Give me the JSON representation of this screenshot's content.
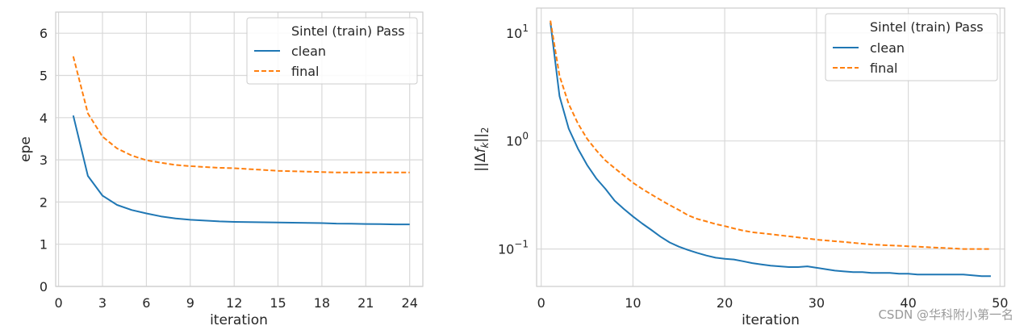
{
  "colors": {
    "clean": "#1f77b4",
    "final": "#ff7f0e",
    "grid": "#d9d9d9",
    "frame": "#cccccc",
    "text": "#262626"
  },
  "watermark": "CSDN @华科附小第一名",
  "chart_data": [
    {
      "type": "line",
      "xlabel": "iteration",
      "ylabel": "epe",
      "xlim": [
        -0.2,
        24.9
      ],
      "ylim": [
        0,
        6.5
      ],
      "xticks": [
        0,
        3,
        6,
        9,
        12,
        15,
        18,
        21,
        24
      ],
      "xtick_labels": [
        "0",
        "3",
        "6",
        "9",
        "12",
        "15",
        "18",
        "21",
        "24"
      ],
      "yticks": [
        0,
        1,
        2,
        3,
        4,
        5,
        6
      ],
      "ytick_labels": [
        "0",
        "1",
        "2",
        "3",
        "4",
        "5",
        "6"
      ],
      "grid": true,
      "legend": {
        "title": "Sintel (train) Pass",
        "placement": "top-right"
      },
      "series": [
        {
          "name": "clean",
          "style": "solid",
          "x": [
            1,
            2,
            3,
            4,
            5,
            6,
            7,
            8,
            9,
            10,
            11,
            12,
            13,
            14,
            15,
            16,
            17,
            18,
            19,
            20,
            21,
            22,
            23,
            24
          ],
          "y": [
            4.05,
            2.62,
            2.15,
            1.93,
            1.81,
            1.73,
            1.66,
            1.61,
            1.58,
            1.56,
            1.54,
            1.53,
            1.525,
            1.52,
            1.515,
            1.51,
            1.505,
            1.5,
            1.49,
            1.485,
            1.48,
            1.475,
            1.47,
            1.47
          ]
        },
        {
          "name": "final",
          "style": "dashed",
          "x": [
            1,
            2,
            3,
            4,
            5,
            6,
            7,
            8,
            9,
            10,
            11,
            12,
            13,
            14,
            15,
            16,
            17,
            18,
            19,
            20,
            21,
            22,
            23,
            24
          ],
          "y": [
            5.45,
            4.1,
            3.55,
            3.27,
            3.1,
            2.99,
            2.93,
            2.88,
            2.85,
            2.83,
            2.81,
            2.8,
            2.78,
            2.76,
            2.74,
            2.73,
            2.72,
            2.71,
            2.7,
            2.7,
            2.7,
            2.7,
            2.7,
            2.7
          ]
        }
      ]
    },
    {
      "type": "line",
      "xlabel": "iteration",
      "ylabel": "||Δf_k||_2",
      "yscale": "log",
      "xlim": [
        -0.5,
        50.5
      ],
      "ylim": [
        0.045,
        17
      ],
      "xticks": [
        0,
        10,
        20,
        30,
        40,
        50
      ],
      "xtick_labels": [
        "0",
        "10",
        "20",
        "30",
        "40",
        "50"
      ],
      "yticks": [
        0.1,
        1,
        10
      ],
      "ytick_labels": [
        "10^-1",
        "10^0",
        "10^1"
      ],
      "grid": true,
      "legend": {
        "title": "Sintel (train) Pass",
        "placement": "top-right"
      },
      "series": [
        {
          "name": "clean",
          "style": "solid",
          "x": [
            1,
            2,
            3,
            4,
            5,
            6,
            7,
            8,
            9,
            10,
            11,
            12,
            13,
            14,
            15,
            16,
            17,
            18,
            19,
            20,
            21,
            22,
            23,
            24,
            25,
            26,
            27,
            28,
            29,
            30,
            31,
            32,
            33,
            34,
            35,
            36,
            37,
            38,
            39,
            40,
            41,
            42,
            43,
            44,
            45,
            46,
            47,
            48,
            49
          ],
          "y": [
            12.5,
            2.6,
            1.3,
            0.85,
            0.6,
            0.45,
            0.36,
            0.28,
            0.235,
            0.2,
            0.172,
            0.15,
            0.13,
            0.115,
            0.105,
            0.098,
            0.092,
            0.087,
            0.083,
            0.081,
            0.08,
            0.077,
            0.074,
            0.072,
            0.07,
            0.069,
            0.068,
            0.068,
            0.069,
            0.067,
            0.065,
            0.063,
            0.062,
            0.061,
            0.061,
            0.06,
            0.06,
            0.06,
            0.059,
            0.059,
            0.058,
            0.058,
            0.058,
            0.058,
            0.058,
            0.058,
            0.057,
            0.056,
            0.056
          ]
        },
        {
          "name": "final",
          "style": "dashed",
          "x": [
            1,
            2,
            3,
            4,
            5,
            6,
            7,
            8,
            9,
            10,
            11,
            12,
            13,
            14,
            15,
            16,
            17,
            18,
            19,
            20,
            21,
            22,
            23,
            24,
            25,
            26,
            27,
            28,
            29,
            30,
            31,
            32,
            33,
            34,
            35,
            36,
            37,
            38,
            39,
            40,
            41,
            42,
            43,
            44,
            45,
            46,
            47,
            48,
            49
          ],
          "y": [
            13,
            4.0,
            2.2,
            1.45,
            1.05,
            0.82,
            0.66,
            0.56,
            0.48,
            0.41,
            0.36,
            0.32,
            0.285,
            0.255,
            0.23,
            0.205,
            0.19,
            0.18,
            0.17,
            0.163,
            0.155,
            0.148,
            0.143,
            0.14,
            0.137,
            0.134,
            0.131,
            0.128,
            0.125,
            0.122,
            0.12,
            0.118,
            0.116,
            0.114,
            0.112,
            0.11,
            0.109,
            0.108,
            0.107,
            0.106,
            0.105,
            0.104,
            0.103,
            0.102,
            0.101,
            0.1,
            0.1,
            0.1,
            0.1
          ]
        }
      ]
    }
  ]
}
